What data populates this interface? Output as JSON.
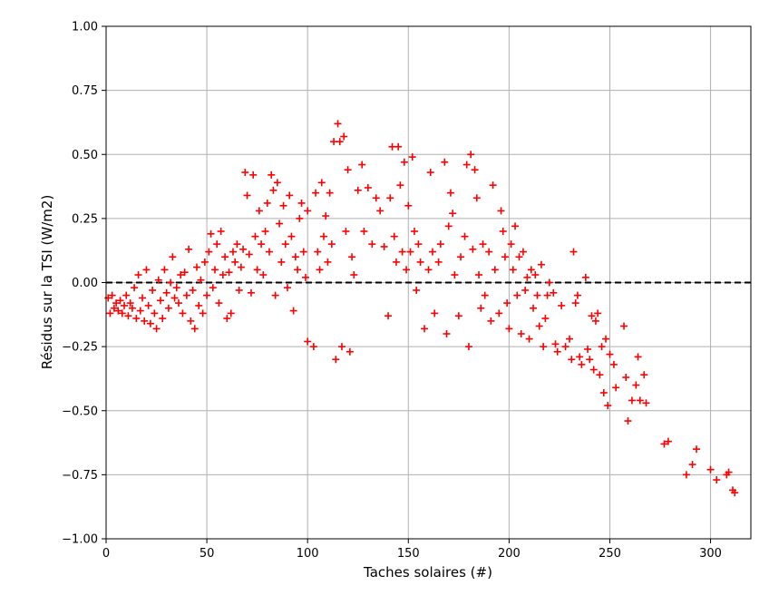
{
  "chart_data": {
    "type": "scatter",
    "title": "",
    "xlabel": "Taches solaires (#)",
    "ylabel": "Résidus sur la TSI (W/m2)",
    "xlim": [
      0,
      320
    ],
    "ylim": [
      -1.0,
      1.0
    ],
    "xticks": [
      0,
      50,
      100,
      150,
      200,
      250,
      300
    ],
    "yticks": [
      -1.0,
      -0.75,
      -0.5,
      -0.25,
      0.0,
      0.25,
      0.5,
      0.75,
      1.0
    ],
    "xtick_labels": [
      "0",
      "50",
      "100",
      "150",
      "200",
      "250",
      "300"
    ],
    "ytick_labels": [
      "−1.00",
      "−0.75",
      "−0.50",
      "−0.25",
      "0.00",
      "0.25",
      "0.50",
      "0.75",
      "1.00"
    ],
    "grid": true,
    "reference_line": {
      "y": 0.0,
      "style": "dashed",
      "color": "#000000"
    },
    "marker": {
      "symbol": "+",
      "color": "#ff0000"
    },
    "series": [
      {
        "points": [
          [
            1,
            -0.06
          ],
          [
            2,
            -0.12
          ],
          [
            3,
            -0.05
          ],
          [
            4,
            -0.1
          ],
          [
            5,
            -0.08
          ],
          [
            6,
            -0.11
          ],
          [
            7,
            -0.07
          ],
          [
            8,
            -0.12
          ],
          [
            9,
            -0.09
          ],
          [
            10,
            -0.05
          ],
          [
            11,
            -0.13
          ],
          [
            12,
            -0.08
          ],
          [
            13,
            -0.1
          ],
          [
            14,
            -0.02
          ],
          [
            15,
            -0.14
          ],
          [
            16,
            0.03
          ],
          [
            17,
            -0.11
          ],
          [
            18,
            -0.06
          ],
          [
            19,
            -0.15
          ],
          [
            20,
            0.05
          ],
          [
            21,
            -0.09
          ],
          [
            22,
            -0.16
          ],
          [
            23,
            -0.03
          ],
          [
            24,
            -0.12
          ],
          [
            25,
            -0.18
          ],
          [
            26,
            0.01
          ],
          [
            27,
            -0.07
          ],
          [
            28,
            -0.14
          ],
          [
            29,
            0.05
          ],
          [
            30,
            -0.04
          ],
          [
            31,
            -0.1
          ],
          [
            32,
            0.0
          ],
          [
            33,
            0.1
          ],
          [
            34,
            -0.06
          ],
          [
            35,
            -0.02
          ],
          [
            36,
            -0.08
          ],
          [
            37,
            0.03
          ],
          [
            38,
            -0.12
          ],
          [
            39,
            0.04
          ],
          [
            40,
            -0.05
          ],
          [
            41,
            0.13
          ],
          [
            42,
            -0.15
          ],
          [
            43,
            -0.03
          ],
          [
            44,
            -0.18
          ],
          [
            45,
            0.06
          ],
          [
            46,
            -0.09
          ],
          [
            47,
            0.01
          ],
          [
            48,
            -0.12
          ],
          [
            49,
            0.08
          ],
          [
            50,
            -0.05
          ],
          [
            51,
            0.12
          ],
          [
            52,
            0.19
          ],
          [
            53,
            -0.02
          ],
          [
            54,
            0.05
          ],
          [
            55,
            0.15
          ],
          [
            56,
            -0.08
          ],
          [
            57,
            0.2
          ],
          [
            58,
            0.03
          ],
          [
            59,
            0.1
          ],
          [
            60,
            -0.14
          ],
          [
            61,
            0.04
          ],
          [
            62,
            -0.12
          ],
          [
            63,
            0.12
          ],
          [
            64,
            0.08
          ],
          [
            65,
            0.15
          ],
          [
            66,
            -0.03
          ],
          [
            67,
            0.06
          ],
          [
            68,
            0.13
          ],
          [
            69,
            0.43
          ],
          [
            70,
            0.34
          ],
          [
            71,
            0.11
          ],
          [
            72,
            -0.04
          ],
          [
            73,
            0.42
          ],
          [
            74,
            0.18
          ],
          [
            75,
            0.05
          ],
          [
            76,
            0.28
          ],
          [
            77,
            0.15
          ],
          [
            78,
            0.03
          ],
          [
            79,
            0.2
          ],
          [
            80,
            0.31
          ],
          [
            81,
            0.12
          ],
          [
            82,
            0.42
          ],
          [
            83,
            0.36
          ],
          [
            84,
            -0.05
          ],
          [
            85,
            0.39
          ],
          [
            86,
            0.23
          ],
          [
            87,
            0.08
          ],
          [
            88,
            0.3
          ],
          [
            89,
            0.15
          ],
          [
            90,
            -0.02
          ],
          [
            91,
            0.34
          ],
          [
            92,
            0.18
          ],
          [
            93,
            -0.11
          ],
          [
            94,
            0.1
          ],
          [
            95,
            0.05
          ],
          [
            96,
            0.25
          ],
          [
            97,
            0.31
          ],
          [
            98,
            0.12
          ],
          [
            99,
            0.02
          ],
          [
            100,
            0.28
          ],
          [
            100,
            -0.23
          ],
          [
            103,
            -0.25
          ],
          [
            104,
            0.35
          ],
          [
            105,
            0.12
          ],
          [
            106,
            0.05
          ],
          [
            107,
            0.39
          ],
          [
            108,
            0.18
          ],
          [
            109,
            0.26
          ],
          [
            110,
            0.08
          ],
          [
            111,
            0.35
          ],
          [
            112,
            0.15
          ],
          [
            113,
            0.55
          ],
          [
            114,
            -0.3
          ],
          [
            115,
            0.62
          ],
          [
            116,
            0.55
          ],
          [
            117,
            -0.25
          ],
          [
            118,
            0.57
          ],
          [
            119,
            0.2
          ],
          [
            120,
            0.44
          ],
          [
            121,
            -0.27
          ],
          [
            122,
            0.1
          ],
          [
            123,
            0.03
          ],
          [
            125,
            0.36
          ],
          [
            127,
            0.46
          ],
          [
            128,
            0.2
          ],
          [
            130,
            0.37
          ],
          [
            132,
            0.15
          ],
          [
            134,
            0.33
          ],
          [
            136,
            0.28
          ],
          [
            138,
            0.14
          ],
          [
            140,
            -0.13
          ],
          [
            141,
            0.33
          ],
          [
            142,
            0.53
          ],
          [
            143,
            0.18
          ],
          [
            144,
            0.08
          ],
          [
            145,
            0.53
          ],
          [
            146,
            0.38
          ],
          [
            147,
            0.12
          ],
          [
            148,
            0.47
          ],
          [
            149,
            0.05
          ],
          [
            150,
            0.3
          ],
          [
            151,
            0.12
          ],
          [
            152,
            0.49
          ],
          [
            153,
            0.2
          ],
          [
            154,
            -0.03
          ],
          [
            155,
            0.15
          ],
          [
            156,
            0.08
          ],
          [
            158,
            -0.18
          ],
          [
            160,
            0.05
          ],
          [
            161,
            0.43
          ],
          [
            162,
            0.12
          ],
          [
            163,
            -0.12
          ],
          [
            165,
            0.08
          ],
          [
            166,
            0.15
          ],
          [
            168,
            0.47
          ],
          [
            169,
            -0.2
          ],
          [
            170,
            0.22
          ],
          [
            171,
            0.35
          ],
          [
            172,
            0.27
          ],
          [
            173,
            0.03
          ],
          [
            175,
            -0.13
          ],
          [
            176,
            0.1
          ],
          [
            178,
            0.18
          ],
          [
            179,
            0.46
          ],
          [
            180,
            -0.25
          ],
          [
            181,
            0.5
          ],
          [
            182,
            0.13
          ],
          [
            183,
            0.44
          ],
          [
            184,
            0.33
          ],
          [
            185,
            0.03
          ],
          [
            186,
            -0.1
          ],
          [
            187,
            0.15
          ],
          [
            188,
            -0.05
          ],
          [
            190,
            0.12
          ],
          [
            191,
            -0.15
          ],
          [
            192,
            0.38
          ],
          [
            193,
            0.05
          ],
          [
            195,
            -0.12
          ],
          [
            196,
            0.28
          ],
          [
            197,
            0.2
          ],
          [
            198,
            0.1
          ],
          [
            199,
            -0.08
          ],
          [
            200,
            -0.18
          ],
          [
            201,
            0.15
          ],
          [
            202,
            0.05
          ],
          [
            203,
            0.22
          ],
          [
            204,
            -0.05
          ],
          [
            205,
            0.1
          ],
          [
            206,
            -0.2
          ],
          [
            207,
            0.12
          ],
          [
            208,
            -0.03
          ],
          [
            209,
            0.02
          ],
          [
            210,
            -0.22
          ],
          [
            211,
            0.05
          ],
          [
            212,
            -0.1
          ],
          [
            213,
            0.03
          ],
          [
            214,
            -0.05
          ],
          [
            215,
            -0.17
          ],
          [
            216,
            0.07
          ],
          [
            217,
            -0.25
          ],
          [
            218,
            -0.14
          ],
          [
            219,
            -0.05
          ],
          [
            220,
            0.0
          ],
          [
            222,
            -0.04
          ],
          [
            223,
            -0.24
          ],
          [
            224,
            -0.27
          ],
          [
            226,
            -0.09
          ],
          [
            228,
            -0.25
          ],
          [
            230,
            -0.22
          ],
          [
            231,
            -0.3
          ],
          [
            232,
            0.12
          ],
          [
            233,
            -0.08
          ],
          [
            234,
            -0.05
          ],
          [
            235,
            -0.29
          ],
          [
            236,
            -0.32
          ],
          [
            238,
            0.02
          ],
          [
            239,
            -0.26
          ],
          [
            240,
            -0.3
          ],
          [
            241,
            -0.13
          ],
          [
            242,
            -0.34
          ],
          [
            243,
            -0.15
          ],
          [
            244,
            -0.12
          ],
          [
            245,
            -0.36
          ],
          [
            246,
            -0.25
          ],
          [
            247,
            -0.43
          ],
          [
            248,
            -0.22
          ],
          [
            249,
            -0.48
          ],
          [
            250,
            -0.28
          ],
          [
            252,
            -0.32
          ],
          [
            253,
            -0.41
          ],
          [
            257,
            -0.17
          ],
          [
            258,
            -0.37
          ],
          [
            259,
            -0.54
          ],
          [
            261,
            -0.46
          ],
          [
            263,
            -0.4
          ],
          [
            264,
            -0.29
          ],
          [
            265,
            -0.46
          ],
          [
            267,
            -0.36
          ],
          [
            268,
            -0.47
          ],
          [
            277,
            -0.63
          ],
          [
            279,
            -0.62
          ],
          [
            288,
            -0.75
          ],
          [
            291,
            -0.71
          ],
          [
            293,
            -0.65
          ],
          [
            300,
            -0.73
          ],
          [
            303,
            -0.77
          ],
          [
            308,
            -0.75
          ],
          [
            309,
            -0.74
          ],
          [
            311,
            -0.81
          ],
          [
            312,
            -0.82
          ]
        ]
      }
    ]
  }
}
